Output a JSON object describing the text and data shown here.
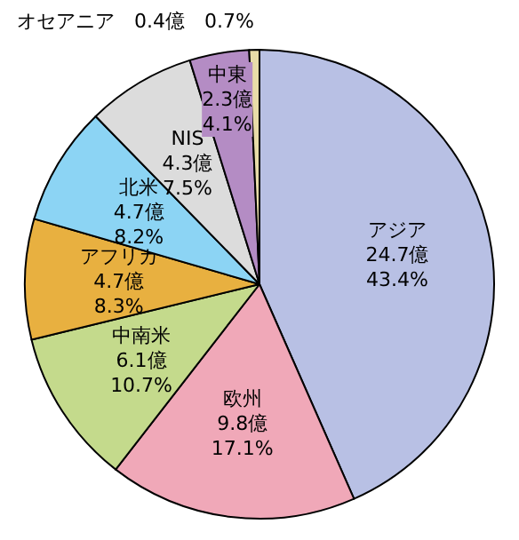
{
  "chart_data": {
    "type": "pie",
    "categories": [
      "アジア",
      "欧州",
      "中南米",
      "アフリカ",
      "北米",
      "NIS",
      "中東",
      "オセアニア"
    ],
    "values": [
      43.4,
      17.1,
      10.7,
      8.3,
      8.2,
      7.5,
      4.1,
      0.7
    ],
    "value_labels": [
      "24.7億 43.4%",
      "9.8億 17.1%",
      "6.1億 10.7%",
      "4.7億 8.3%",
      "4.7億 8.2%",
      "4.3億 7.5%",
      "2.3億 4.1%",
      "0.4億 0.7%"
    ],
    "colors": [
      "#b8c0e4",
      "#f0a8b8",
      "#c4da8c",
      "#e8b040",
      "#8cd4f4",
      "#dcdcdc",
      "#b48cc4",
      "#e8dca8"
    ],
    "legend": false
  }
}
